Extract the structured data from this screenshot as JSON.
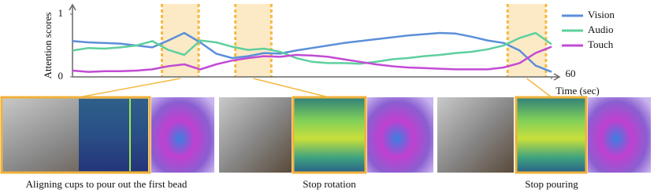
{
  "chart_data": {
    "type": "line",
    "y_label": "Attention scores",
    "x_label": "Time (sec)",
    "x": [
      0,
      2,
      4,
      6,
      8,
      10,
      12,
      14,
      16,
      18,
      20,
      22,
      24,
      26,
      28,
      30,
      32,
      34,
      36,
      38,
      40,
      42,
      44,
      46,
      48,
      50,
      52,
      54,
      56,
      58,
      60
    ],
    "xlim": [
      0,
      60
    ],
    "xticks": [
      60
    ],
    "ylim": [
      0,
      1
    ],
    "yticks": [
      0,
      1
    ],
    "series": [
      {
        "name": "Vision",
        "color": "#5b8fd9",
        "values": [
          0.57,
          0.55,
          0.54,
          0.53,
          0.5,
          0.47,
          0.58,
          0.7,
          0.55,
          0.37,
          0.3,
          0.33,
          0.38,
          0.37,
          0.42,
          0.46,
          0.5,
          0.54,
          0.57,
          0.6,
          0.63,
          0.66,
          0.68,
          0.7,
          0.69,
          0.64,
          0.58,
          0.54,
          0.42,
          0.18,
          0.08
        ]
      },
      {
        "name": "Audio",
        "color": "#5fcf9e",
        "values": [
          0.42,
          0.46,
          0.45,
          0.47,
          0.5,
          0.57,
          0.43,
          0.35,
          0.58,
          0.55,
          0.48,
          0.43,
          0.45,
          0.4,
          0.3,
          0.24,
          0.22,
          0.22,
          0.21,
          0.24,
          0.28,
          0.3,
          0.33,
          0.35,
          0.38,
          0.4,
          0.44,
          0.5,
          0.62,
          0.7,
          0.52
        ]
      },
      {
        "name": "Touch",
        "color": "#c24bd4",
        "values": [
          0.1,
          0.08,
          0.09,
          0.09,
          0.1,
          0.12,
          0.17,
          0.2,
          0.12,
          0.2,
          0.26,
          0.3,
          0.33,
          0.32,
          0.35,
          0.34,
          0.32,
          0.28,
          0.24,
          0.2,
          0.17,
          0.15,
          0.14,
          0.13,
          0.12,
          0.12,
          0.12,
          0.15,
          0.22,
          0.38,
          0.48
        ]
      }
    ],
    "highlights": [
      [
        11.2,
        15.8
      ],
      [
        20.4,
        24.9
      ],
      [
        54.5,
        59.3
      ]
    ],
    "highlight_color": "#f5b942",
    "panels": [
      {
        "caption": "Aligning cups to pour out the first bead"
      },
      {
        "caption": "Stop rotation"
      },
      {
        "caption": "Stop pouring"
      }
    ]
  }
}
